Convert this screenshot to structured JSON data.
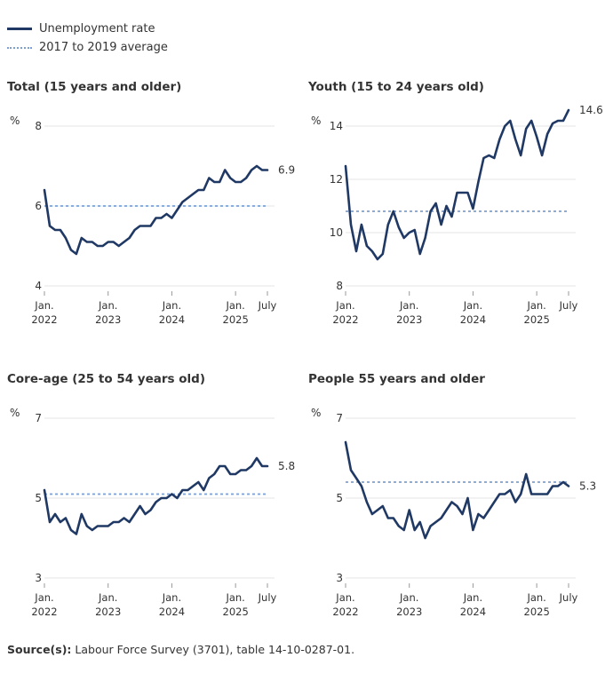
{
  "legend": {
    "line_label": "Unemployment rate",
    "avg_label": "2017 to 2019 average"
  },
  "colors": {
    "line": "#1f3864",
    "average": "#7ca0d4",
    "grid": "#e6e6e6",
    "text": "#333333"
  },
  "source": {
    "label": "Source(s):",
    "text": " Labour Force Survey (3701), table 14-10-0287-01."
  },
  "x_ticks": [
    {
      "month": 0,
      "lines": [
        "Jan.",
        "2022"
      ]
    },
    {
      "month": 12,
      "lines": [
        "Jan.",
        "2023"
      ]
    },
    {
      "month": 24,
      "lines": [
        "Jan.",
        "2024"
      ]
    },
    {
      "month": 36,
      "lines": [
        "Jan.",
        "2025"
      ]
    },
    {
      "month": 42,
      "lines": [
        "July"
      ]
    }
  ],
  "chart_data": [
    {
      "type": "line",
      "title": "Total (15 years and older)",
      "ylabel": "%",
      "ylim": [
        4,
        8
      ],
      "yticks": [
        4,
        6,
        8
      ],
      "average": 6.0,
      "end_label": "6.9",
      "x_start": "2022-01",
      "values": [
        6.4,
        5.5,
        5.4,
        5.4,
        5.2,
        4.9,
        4.8,
        5.2,
        5.1,
        5.1,
        5.0,
        5.0,
        5.1,
        5.1,
        5.0,
        5.1,
        5.2,
        5.4,
        5.5,
        5.5,
        5.5,
        5.7,
        5.7,
        5.8,
        5.7,
        5.9,
        6.1,
        6.2,
        6.3,
        6.4,
        6.4,
        6.7,
        6.6,
        6.6,
        6.9,
        6.7,
        6.6,
        6.6,
        6.7,
        6.9,
        7.0,
        6.9,
        6.9
      ]
    },
    {
      "type": "line",
      "title": "Youth (15 to 24 years old)",
      "ylabel": "%",
      "ylim": [
        8,
        14
      ],
      "yticks": [
        8,
        10,
        12,
        14
      ],
      "average": 10.8,
      "end_label": "14.6",
      "x_start": "2022-01",
      "values": [
        12.5,
        10.3,
        9.3,
        10.3,
        9.5,
        9.3,
        9.0,
        9.2,
        10.3,
        10.8,
        10.2,
        9.8,
        10.0,
        10.1,
        9.2,
        9.8,
        10.8,
        11.1,
        10.3,
        11.0,
        10.6,
        11.5,
        11.5,
        11.5,
        10.9,
        11.9,
        12.8,
        12.9,
        12.8,
        13.5,
        14.0,
        14.2,
        13.5,
        12.9,
        13.9,
        14.2,
        13.6,
        12.9,
        13.7,
        14.1,
        14.2,
        14.2,
        14.6
      ]
    },
    {
      "type": "line",
      "title": "Core-age (25 to 54 years old)",
      "ylabel": "%",
      "ylim": [
        3,
        7
      ],
      "yticks": [
        3,
        5,
        7
      ],
      "average": 5.1,
      "end_label": "5.8",
      "x_start": "2022-01",
      "values": [
        5.2,
        4.4,
        4.6,
        4.4,
        4.5,
        4.2,
        4.1,
        4.6,
        4.3,
        4.2,
        4.3,
        4.3,
        4.3,
        4.4,
        4.4,
        4.5,
        4.4,
        4.6,
        4.8,
        4.6,
        4.7,
        4.9,
        5.0,
        5.0,
        5.1,
        5.0,
        5.2,
        5.2,
        5.3,
        5.4,
        5.2,
        5.5,
        5.6,
        5.8,
        5.8,
        5.6,
        5.6,
        5.7,
        5.7,
        5.8,
        6.0,
        5.8,
        5.8
      ]
    },
    {
      "type": "line",
      "title": "People 55 years and older",
      "ylabel": "%",
      "ylim": [
        3,
        7
      ],
      "yticks": [
        3,
        5,
        7
      ],
      "average": 5.4,
      "end_label": "5.3",
      "x_start": "2022-01",
      "values": [
        6.4,
        5.7,
        5.5,
        5.3,
        4.9,
        4.6,
        4.7,
        4.8,
        4.5,
        4.5,
        4.3,
        4.2,
        4.7,
        4.2,
        4.4,
        4.0,
        4.3,
        4.4,
        4.5,
        4.7,
        4.9,
        4.8,
        4.6,
        5.0,
        4.2,
        4.6,
        4.5,
        4.7,
        4.9,
        5.1,
        5.1,
        5.2,
        4.9,
        5.1,
        5.6,
        5.1,
        5.1,
        5.1,
        5.1,
        5.3,
        5.3,
        5.4,
        5.3
      ]
    }
  ]
}
